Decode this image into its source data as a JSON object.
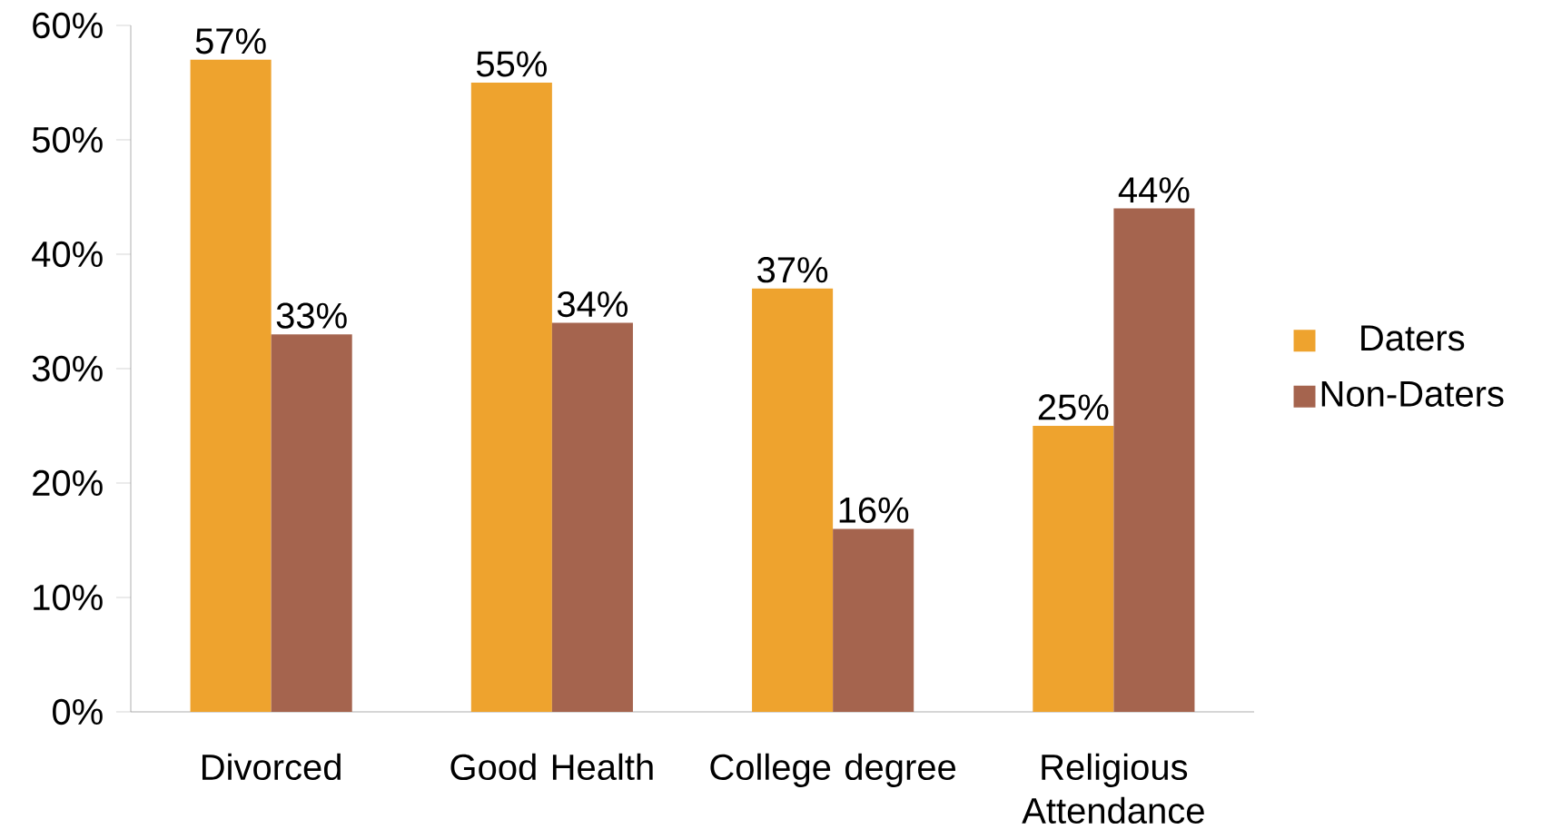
{
  "chart_data": {
    "type": "bar",
    "categories": [
      "Divorced",
      "Good Health",
      "College degree",
      "Religious Attendance"
    ],
    "series": [
      {
        "name": "Daters",
        "color": "#eea32e",
        "values": [
          57,
          55,
          37,
          25
        ],
        "value_labels": [
          "57%",
          "55%",
          "37%",
          "25%"
        ]
      },
      {
        "name": "Non-Daters",
        "color": "#a5644e",
        "values": [
          33,
          34,
          16,
          44
        ],
        "value_labels": [
          "33%",
          "34%",
          "16%",
          "44%"
        ]
      }
    ],
    "ylim": [
      0,
      60
    ],
    "yticks": [
      {
        "value": 0,
        "label": "0%"
      },
      {
        "value": 10,
        "label": "10%"
      },
      {
        "value": 20,
        "label": "20%"
      },
      {
        "value": 30,
        "label": "30%"
      },
      {
        "value": 40,
        "label": "40%"
      },
      {
        "value": 50,
        "label": "50%"
      },
      {
        "value": 60,
        "label": "60%"
      }
    ],
    "grid": false,
    "legend": "right"
  }
}
